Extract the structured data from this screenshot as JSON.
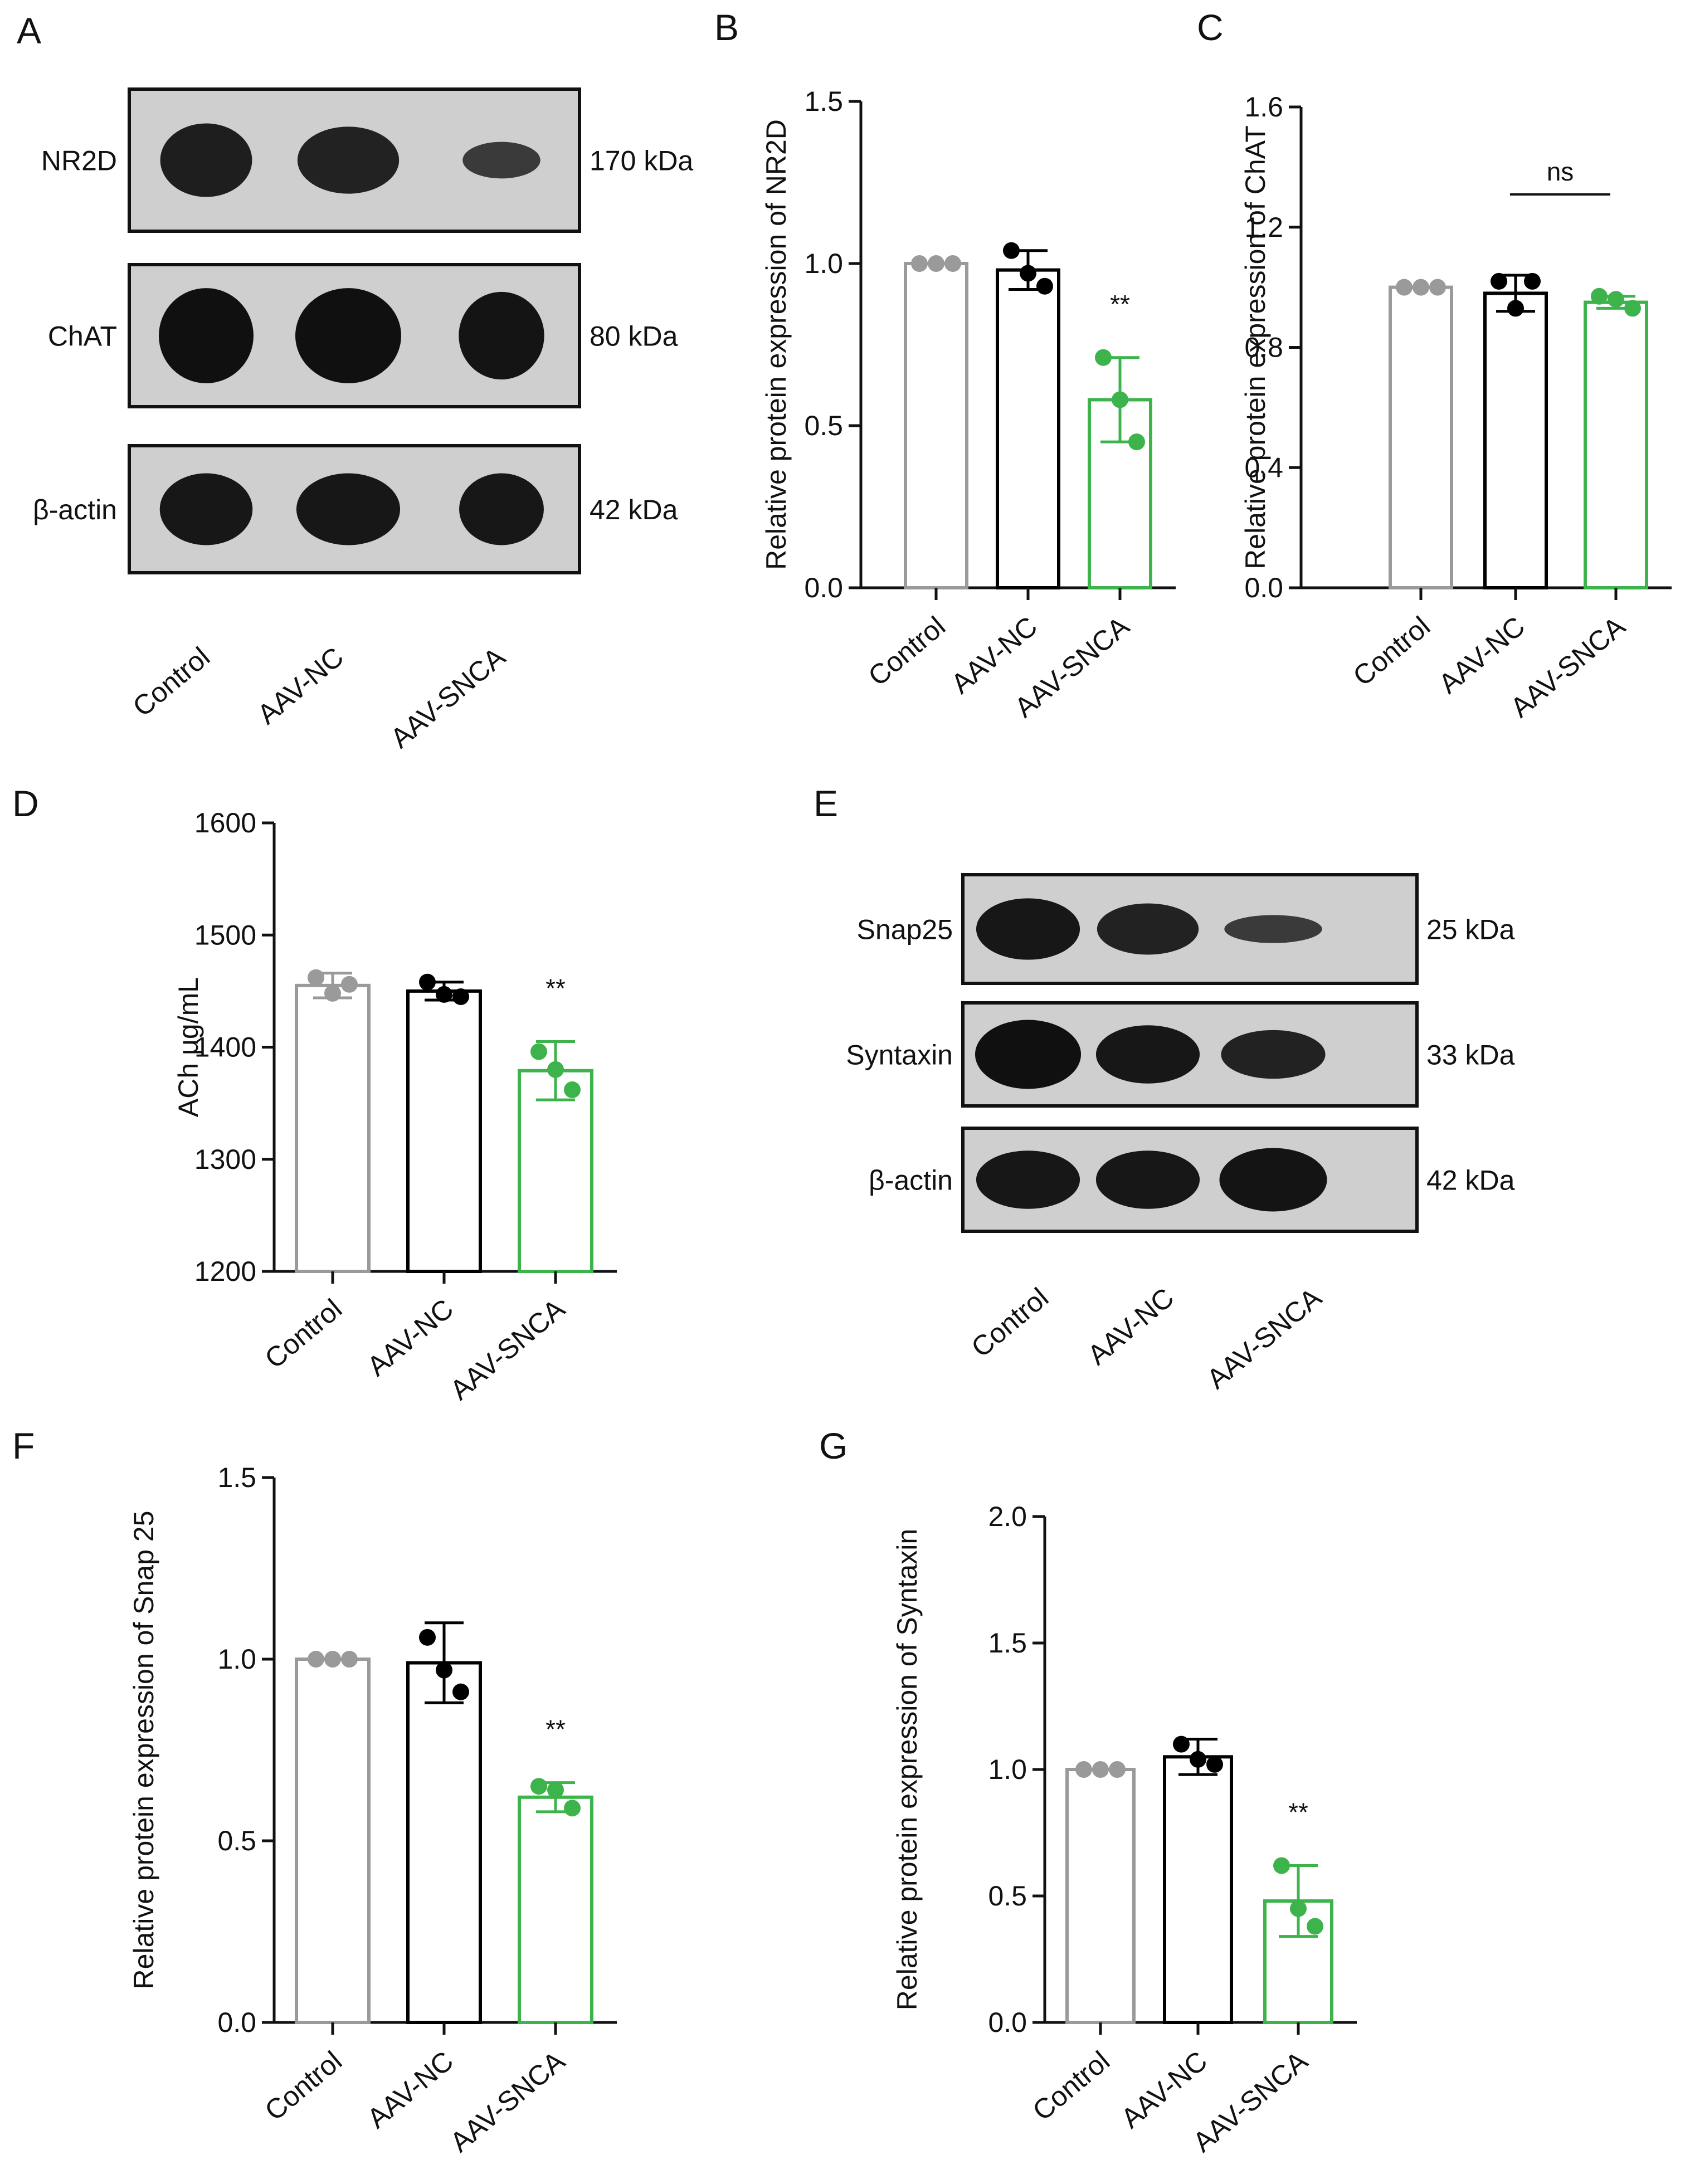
{
  "colors": {
    "control": "#9a9a9a",
    "aav_nc": "#000000",
    "aav_snca": "#3cb44b",
    "blot_bg": "#cfcfcf",
    "band": "#101010"
  },
  "panel_labels": [
    "A",
    "B",
    "C",
    "D",
    "E",
    "F",
    "G"
  ],
  "categories": [
    "Control",
    "AAV-NC",
    "AAV-SNCA"
  ],
  "western_blots": [
    {
      "panel": "A",
      "lanes": [
        "Control",
        "AAV-NC",
        "AAV-SNCA"
      ],
      "rows": [
        {
          "protein": "NR2D",
          "size": "170 kDa",
          "band_intensity": [
            0.85,
            0.8,
            0.5
          ]
        },
        {
          "protein": "ChAT",
          "size": "80 kDa",
          "band_intensity": [
            1.0,
            1.0,
            0.95
          ]
        },
        {
          "protein": "β-actin",
          "size": "42 kDa",
          "band_intensity": [
            0.9,
            0.9,
            0.9
          ]
        }
      ]
    },
    {
      "panel": "E",
      "lanes": [
        "Control",
        "AAV-NC",
        "AAV-SNCA"
      ],
      "rows": [
        {
          "protein": "Snap25",
          "size": "25 kDa",
          "band_intensity": [
            0.9,
            0.8,
            0.5
          ]
        },
        {
          "protein": "Syntaxin",
          "size": "33 kDa",
          "band_intensity": [
            1.0,
            0.9,
            0.8
          ]
        },
        {
          "protein": "β-actin",
          "size": "42 kDa",
          "band_intensity": [
            0.9,
            0.9,
            0.95
          ]
        }
      ]
    }
  ],
  "chart_data": [
    {
      "panel": "B",
      "type": "bar",
      "categories": [
        "Control",
        "AAV-NC",
        "AAV-SNCA"
      ],
      "values": [
        1.0,
        0.98,
        0.58
      ],
      "errors": [
        0.0,
        0.06,
        0.13
      ],
      "points": [
        [
          1.0,
          1.0,
          1.0
        ],
        [
          1.04,
          0.97,
          0.93
        ],
        [
          0.71,
          0.58,
          0.45
        ]
      ],
      "ylabel": "Relative protein expression of NR2D",
      "ylim": [
        0,
        1.5
      ],
      "yticks": [
        "0.0",
        "0.5",
        "1.0",
        "1.5"
      ],
      "annotations": [
        {
          "category": "AAV-SNCA",
          "text": "**"
        }
      ]
    },
    {
      "panel": "C",
      "type": "bar",
      "categories": [
        "Control",
        "AAV-NC",
        "AAV-SNCA"
      ],
      "values": [
        1.0,
        0.98,
        0.95
      ],
      "errors": [
        0.0,
        0.06,
        0.02
      ],
      "points": [
        [
          1.0,
          1.0,
          1.0
        ],
        [
          1.02,
          0.93,
          1.02
        ],
        [
          0.97,
          0.96,
          0.93
        ]
      ],
      "ylabel": "Relative protein expression of ChAT",
      "ylim": [
        0,
        1.6
      ],
      "yticks": [
        "0.0",
        "0.4",
        "0.8",
        "1.2",
        "1.6"
      ],
      "annotations": [
        {
          "from": "AAV-NC",
          "to": "AAV-SNCA",
          "text": "ns"
        }
      ]
    },
    {
      "panel": "D",
      "type": "bar",
      "categories": [
        "Control",
        "AAV-NC",
        "AAV-SNCA"
      ],
      "values": [
        1455,
        1450,
        1379
      ],
      "errors": [
        11,
        8,
        26
      ],
      "points": [
        [
          1462,
          1448,
          1456
        ],
        [
          1458,
          1447,
          1445
        ],
        [
          1396,
          1380,
          1362
        ]
      ],
      "ylabel": "ACh μg/mL",
      "ylim": [
        1200,
        1600
      ],
      "yticks": [
        "1200",
        "1300",
        "1400",
        "1500",
        "1600"
      ],
      "annotations": [
        {
          "category": "AAV-SNCA",
          "text": "**"
        }
      ]
    },
    {
      "panel": "F",
      "type": "bar",
      "categories": [
        "Control",
        "AAV-NC",
        "AAV-SNCA"
      ],
      "values": [
        1.0,
        0.99,
        0.62
      ],
      "errors": [
        0.0,
        0.11,
        0.04
      ],
      "points": [
        [
          1.0,
          1.0,
          1.0
        ],
        [
          1.06,
          0.97,
          0.91
        ],
        [
          0.65,
          0.64,
          0.59
        ]
      ],
      "ylabel": "Relative protein expression of Snap 25",
      "ylim": [
        0,
        1.5
      ],
      "yticks": [
        "0.0",
        "0.5",
        "1.0",
        "1.5"
      ],
      "annotations": [
        {
          "category": "AAV-SNCA",
          "text": "**"
        }
      ]
    },
    {
      "panel": "G",
      "type": "bar",
      "categories": [
        "Control",
        "AAV-NC",
        "AAV-SNCA"
      ],
      "values": [
        1.0,
        1.05,
        0.48
      ],
      "errors": [
        0.0,
        0.07,
        0.14
      ],
      "points": [
        [
          1.0,
          1.0,
          1.0
        ],
        [
          1.1,
          1.04,
          1.02
        ],
        [
          0.62,
          0.45,
          0.38
        ]
      ],
      "ylabel": "Relative protein expression of Syntaxin",
      "ylim": [
        0,
        2.0
      ],
      "yticks": [
        "0.0",
        "0.5",
        "1.0",
        "1.5",
        "2.0"
      ],
      "annotations": [
        {
          "category": "AAV-SNCA",
          "text": "**"
        }
      ]
    }
  ]
}
